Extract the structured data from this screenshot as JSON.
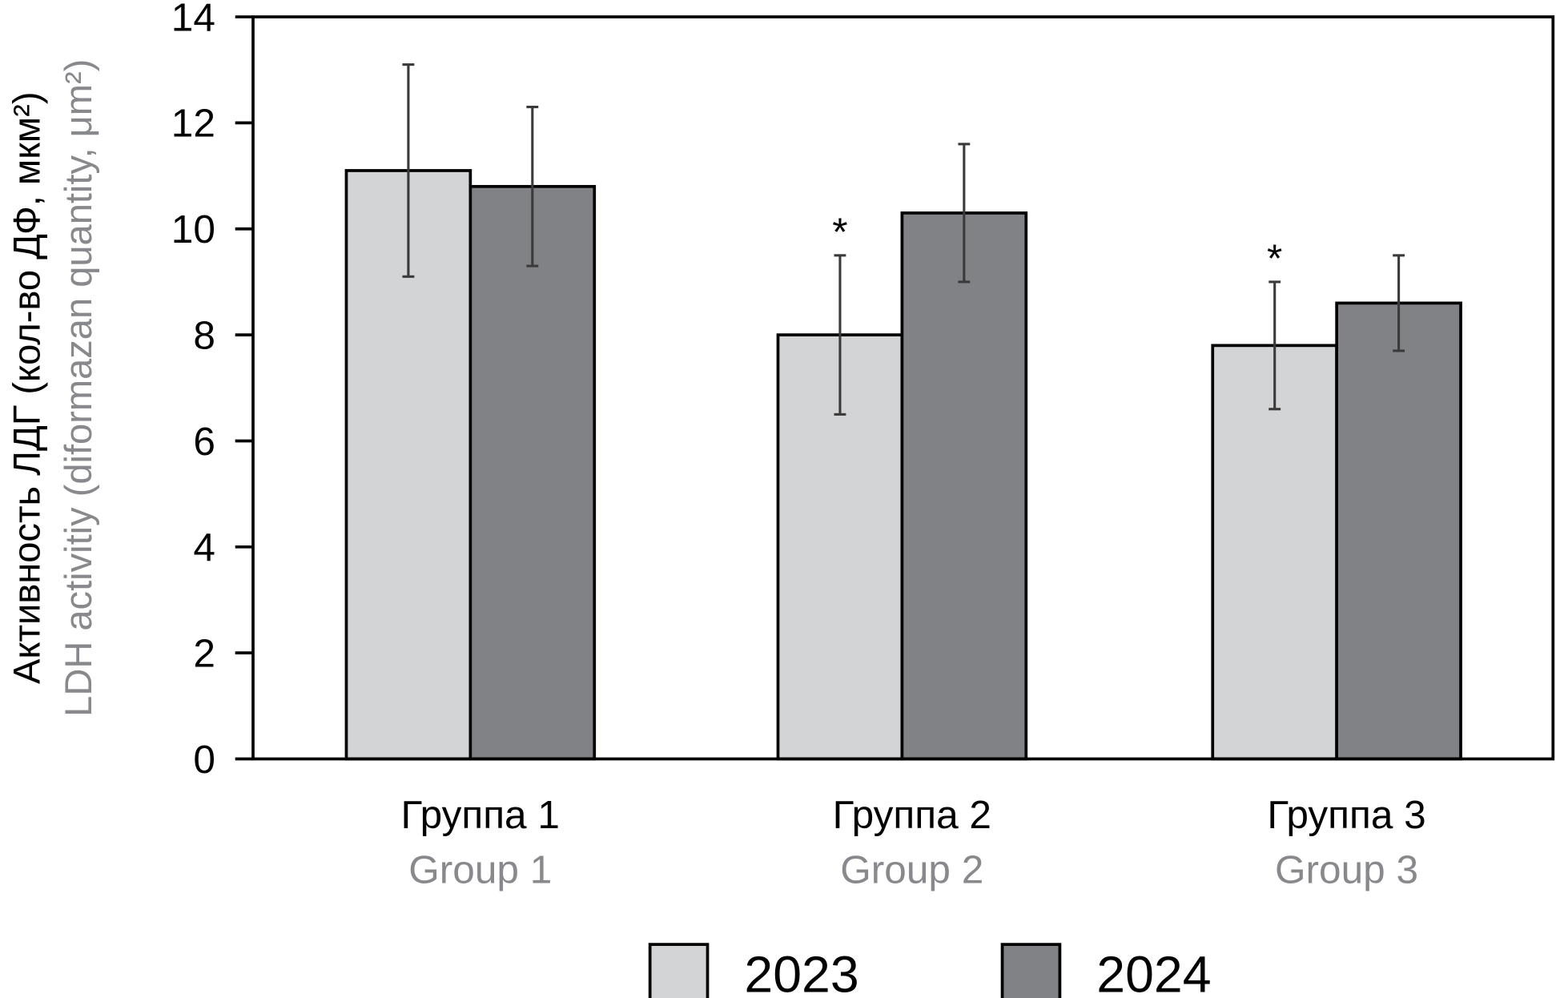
{
  "chart_data": {
    "type": "bar",
    "title": "",
    "ylabel": "Активность ЛДГ (кол-во ДФ, мкм²)",
    "ylabel_en": "LDH activitiy (diformazan quantity, μm²)",
    "xlabel": "",
    "ylim": [
      0,
      14
    ],
    "yticks": [
      0,
      2,
      4,
      6,
      8,
      10,
      12,
      14
    ],
    "categories": [
      "Группа 1",
      "Группа 2",
      "Группа 3"
    ],
    "categories_en": [
      "Group 1",
      "Group 2",
      "Group 3"
    ],
    "series": [
      {
        "name": "2023",
        "color": "#d3d4d6",
        "values": [
          11.1,
          8.0,
          7.8
        ],
        "err_low": [
          9.1,
          6.5,
          6.6
        ],
        "err_high": [
          13.1,
          9.5,
          9.0
        ],
        "annotations": [
          "",
          "*",
          "*"
        ]
      },
      {
        "name": "2024",
        "color": "#818285",
        "values": [
          10.8,
          10.3,
          8.6
        ],
        "err_low": [
          9.3,
          9.0,
          7.7
        ],
        "err_high": [
          12.3,
          11.6,
          9.5
        ],
        "annotations": [
          "",
          "",
          ""
        ]
      }
    ],
    "legend_position": "bottom",
    "grid": false
  }
}
